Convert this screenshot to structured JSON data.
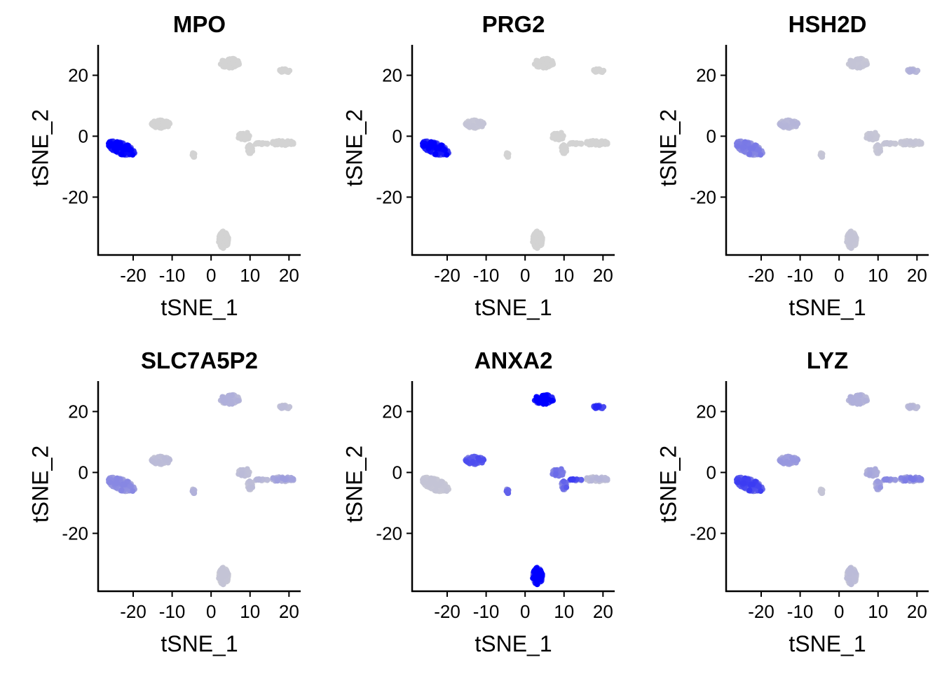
{
  "chart_data": {
    "type": "scatter",
    "layout": "2x3 grid of feature plots",
    "xlabel": "tSNE_1",
    "ylabel": "tSNE_2",
    "xlim": [
      -29,
      23
    ],
    "ylim": [
      -39,
      30
    ],
    "x_ticks": [
      -20,
      -10,
      0,
      10,
      20
    ],
    "x_tick_labels": [
      "-20",
      "-10",
      "0",
      "10",
      "20"
    ],
    "y_ticks": [
      20,
      0,
      -20
    ],
    "y_tick_labels": [
      "20",
      "0",
      "-20"
    ],
    "grid": false,
    "legend": "none",
    "color_scale": {
      "low": "#d3d3d3",
      "high": "#0000ff"
    },
    "clusters": [
      {
        "name": "A",
        "cx": -23,
        "cy": -4,
        "rx": 3.8,
        "ry": 1.8,
        "rot": -30,
        "n": 170
      },
      {
        "name": "B",
        "cx": -13,
        "cy": 4,
        "rx": 2.5,
        "ry": 1.3,
        "rot": 0,
        "n": 60
      },
      {
        "name": "C",
        "cx": -4.5,
        "cy": -6,
        "rx": 0.35,
        "ry": 1.0,
        "rot": 0,
        "n": 10
      },
      {
        "name": "D",
        "cx": 4.8,
        "cy": 24,
        "rx": 2.5,
        "ry": 1.6,
        "rot": 0,
        "n": 80
      },
      {
        "name": "E",
        "cx": 19,
        "cy": 21.5,
        "rx": 1.5,
        "ry": 0.6,
        "rot": 0,
        "n": 30
      },
      {
        "name": "F",
        "cx": 3.2,
        "cy": -34,
        "rx": 1.3,
        "ry": 2.8,
        "rot": 0,
        "n": 90
      },
      {
        "name": "G1",
        "cx": 8.5,
        "cy": 0,
        "rx": 1.6,
        "ry": 1.3,
        "rot": 0,
        "n": 35
      },
      {
        "name": "G2",
        "cx": 10,
        "cy": -4,
        "rx": 0.8,
        "ry": 1.8,
        "rot": 0,
        "n": 20
      },
      {
        "name": "G3",
        "cx": 13,
        "cy": -2.5,
        "rx": 2.0,
        "ry": 0.35,
        "rot": 0,
        "n": 16
      },
      {
        "name": "H",
        "cx": 18.5,
        "cy": -2.2,
        "rx": 3.0,
        "ry": 0.8,
        "rot": 0,
        "n": 45
      }
    ],
    "panels": [
      {
        "title": "MPO",
        "expression": {
          "A": 0.78,
          "B": 0,
          "C": 0,
          "D": 0,
          "E": 0,
          "F": 0,
          "G1": 0,
          "G2": 0,
          "G3": 0,
          "H": 0
        }
      },
      {
        "title": "PRG2",
        "expression": {
          "A": 0.72,
          "B": 0.05,
          "C": 0,
          "D": 0,
          "E": 0,
          "F": 0,
          "G1": 0,
          "G2": 0,
          "G3": 0,
          "H": 0
        }
      },
      {
        "title": "HSH2D",
        "expression": {
          "A": 0.3,
          "B": 0.1,
          "C": 0.05,
          "D": 0.05,
          "E": 0.12,
          "F": 0.05,
          "G1": 0.05,
          "G2": 0.05,
          "G3": 0.05,
          "H": 0.05
        }
      },
      {
        "title": "SLC7A5P2",
        "expression": {
          "A": 0.25,
          "B": 0.08,
          "C": 0.12,
          "D": 0.12,
          "E": 0.08,
          "F": 0.05,
          "G1": 0.08,
          "G2": 0.08,
          "G3": 0.1,
          "H": 0.18
        }
      },
      {
        "title": "ANXA2",
        "expression": {
          "A": 0.05,
          "B": 0.45,
          "C": 0.4,
          "D": 0.8,
          "E": 0.6,
          "F": 0.85,
          "G1": 0.35,
          "G2": 0.4,
          "G3": 0.5,
          "H": 0.1
        }
      },
      {
        "title": "LYZ",
        "expression": {
          "A": 0.5,
          "B": 0.2,
          "C": 0.05,
          "D": 0.12,
          "E": 0.1,
          "F": 0.08,
          "G1": 0.15,
          "G2": 0.2,
          "G3": 0.25,
          "H": 0.3
        }
      }
    ]
  }
}
